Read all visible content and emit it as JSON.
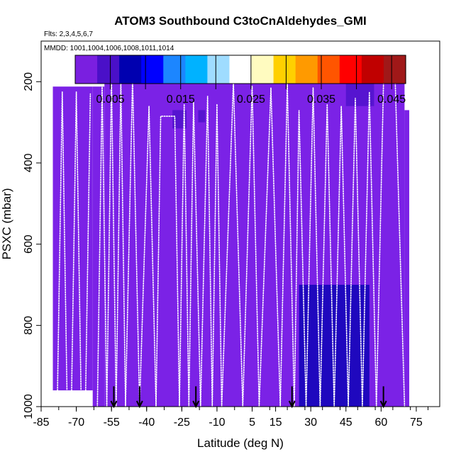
{
  "chart_data": {
    "type": "heatmap",
    "title": "ATOM3 Southbound C3toCnAldehydes_GMI",
    "flights_label": "Flts: 2,3,4,5,6,7",
    "dates_label": "MMDD: 1001,1004,1006,1008,1011,1014",
    "xlabel": "Latitude (deg N)",
    "ylabel": "PSXC (mbar)",
    "xlim": [
      -85,
      85
    ],
    "ylim": [
      1000,
      100
    ],
    "y_reversed": true,
    "x_ticks": [
      -85,
      -70,
      -55,
      -40,
      -25,
      -10,
      5,
      15,
      30,
      45,
      60,
      75
    ],
    "x_tick_labels": [
      "-85",
      "-70",
      "-55",
      "-40",
      "-25",
      "-10",
      "5",
      "15",
      "30",
      "45",
      "60",
      "75"
    ],
    "y_ticks": [
      200,
      400,
      600,
      800,
      1000
    ],
    "y_tick_labels": [
      "200",
      "400",
      "600",
      "800",
      "1000"
    ],
    "colorbar": {
      "min": 0.0,
      "max": 0.047,
      "ticks": [
        0.005,
        0.015,
        0.025,
        0.035,
        0.045
      ],
      "tick_labels": [
        "0.005",
        "0.015",
        "0.025",
        "0.035",
        "0.045"
      ],
      "colors": [
        "#7a1fe0",
        "#4a10c8",
        "#0000b0",
        "#0000ff",
        "#1c86ff",
        "#00b2ff",
        "#9fdcff",
        "#ffffff",
        "#fffbc0",
        "#ffd000",
        "#ff9a00",
        "#ff5500",
        "#ff0000",
        "#c00000",
        "#a01818"
      ]
    },
    "background_color": "#7b22e6",
    "data_region": {
      "segments": [
        {
          "lat_min": -80,
          "lat_max": -63,
          "p_top": 212,
          "p_bottom": 960
        },
        {
          "lat_min": -63,
          "lat_max": -58,
          "p_top": 212,
          "p_bottom": 1000
        },
        {
          "lat_min": -58,
          "lat_max": 70,
          "p_top": 166,
          "p_bottom": 1000
        },
        {
          "lat_min": 70,
          "lat_max": 72,
          "p_top": 270,
          "p_bottom": 1000
        }
      ]
    },
    "enhanced_patches": [
      {
        "lat": [
          -29,
          -23
        ],
        "p": [
          270,
          315
        ],
        "value": 0.004
      },
      {
        "lat": [
          -18,
          -15
        ],
        "p": [
          270,
          300
        ],
        "value": 0.005
      },
      {
        "lat": [
          45,
          57
        ],
        "p": [
          195,
          260
        ],
        "value": 0.006
      },
      {
        "lat": [
          25,
          55
        ],
        "p": [
          700,
          1000
        ],
        "value": 0.007
      }
    ],
    "profiles": [
      {
        "lat": [
          -78,
          -76,
          -74
        ],
        "p": [
          960,
          225,
          960
        ]
      },
      {
        "lat": [
          -72,
          -70,
          -68
        ],
        "p": [
          960,
          225,
          960
        ]
      },
      {
        "lat": [
          -66,
          -64
        ],
        "p": [
          960,
          230
        ]
      },
      {
        "lat": [
          -61,
          -59,
          -57
        ],
        "p": [
          1000,
          210,
          1000
        ]
      },
      {
        "lat": [
          -57,
          -55,
          -53
        ],
        "p": [
          1000,
          195,
          1000
        ]
      },
      {
        "lat": [
          -53,
          -51,
          -49
        ],
        "p": [
          1000,
          200,
          1000
        ]
      },
      {
        "lat": [
          -49,
          -46,
          -43
        ],
        "p": [
          1000,
          190,
          1000
        ]
      },
      {
        "lat": [
          -43,
          -39,
          -36
        ],
        "p": [
          1000,
          260,
          1000
        ]
      },
      {
        "lat": [
          -36,
          -34,
          -28,
          -26
        ],
        "p": [
          1000,
          285,
          285,
          1000
        ]
      },
      {
        "lat": [
          -26,
          -24,
          -22
        ],
        "p": [
          1000,
          255,
          1000
        ]
      },
      {
        "lat": [
          -22,
          -20,
          -17
        ],
        "p": [
          1000,
          250,
          1000
        ]
      },
      {
        "lat": [
          -17,
          -14,
          -12
        ],
        "p": [
          1000,
          235,
          1000
        ]
      },
      {
        "lat": [
          -12,
          -10,
          -8
        ],
        "p": [
          1000,
          255,
          1000
        ]
      },
      {
        "lat": [
          -8,
          -3,
          1
        ],
        "p": [
          1000,
          200,
          1000
        ]
      },
      {
        "lat": [
          1,
          5,
          8
        ],
        "p": [
          1000,
          210,
          1000
        ]
      },
      {
        "lat": [
          8,
          13,
          17
        ],
        "p": [
          1000,
          215,
          1000
        ]
      },
      {
        "lat": [
          17,
          20,
          23
        ],
        "p": [
          1000,
          205,
          1000
        ]
      },
      {
        "lat": [
          23,
          25,
          28
        ],
        "p": [
          1000,
          270,
          1000
        ]
      },
      {
        "lat": [
          28,
          31,
          34
        ],
        "p": [
          1000,
          215,
          1000
        ]
      },
      {
        "lat": [
          34,
          37,
          40
        ],
        "p": [
          1000,
          255,
          1000
        ]
      },
      {
        "lat": [
          40,
          43,
          46
        ],
        "p": [
          1000,
          260,
          1000
        ]
      },
      {
        "lat": [
          46,
          49,
          52
        ],
        "p": [
          1000,
          240,
          1000
        ]
      },
      {
        "lat": [
          52,
          55,
          58
        ],
        "p": [
          1000,
          225,
          1000
        ]
      },
      {
        "lat": [
          58,
          61,
          63,
          66,
          70
        ],
        "p": [
          1000,
          205,
          195,
          195,
          1000
        ]
      }
    ],
    "arrows": [
      {
        "lat": -54,
        "p_top": 950,
        "p_bottom": 1000
      },
      {
        "lat": -43,
        "p_top": 950,
        "p_bottom": 1000
      },
      {
        "lat": -19,
        "p_top": 950,
        "p_bottom": 1000
      },
      {
        "lat": 22,
        "p_top": 950,
        "p_bottom": 1000
      },
      {
        "lat": 61,
        "p_top": 950,
        "p_bottom": 1000
      }
    ]
  }
}
